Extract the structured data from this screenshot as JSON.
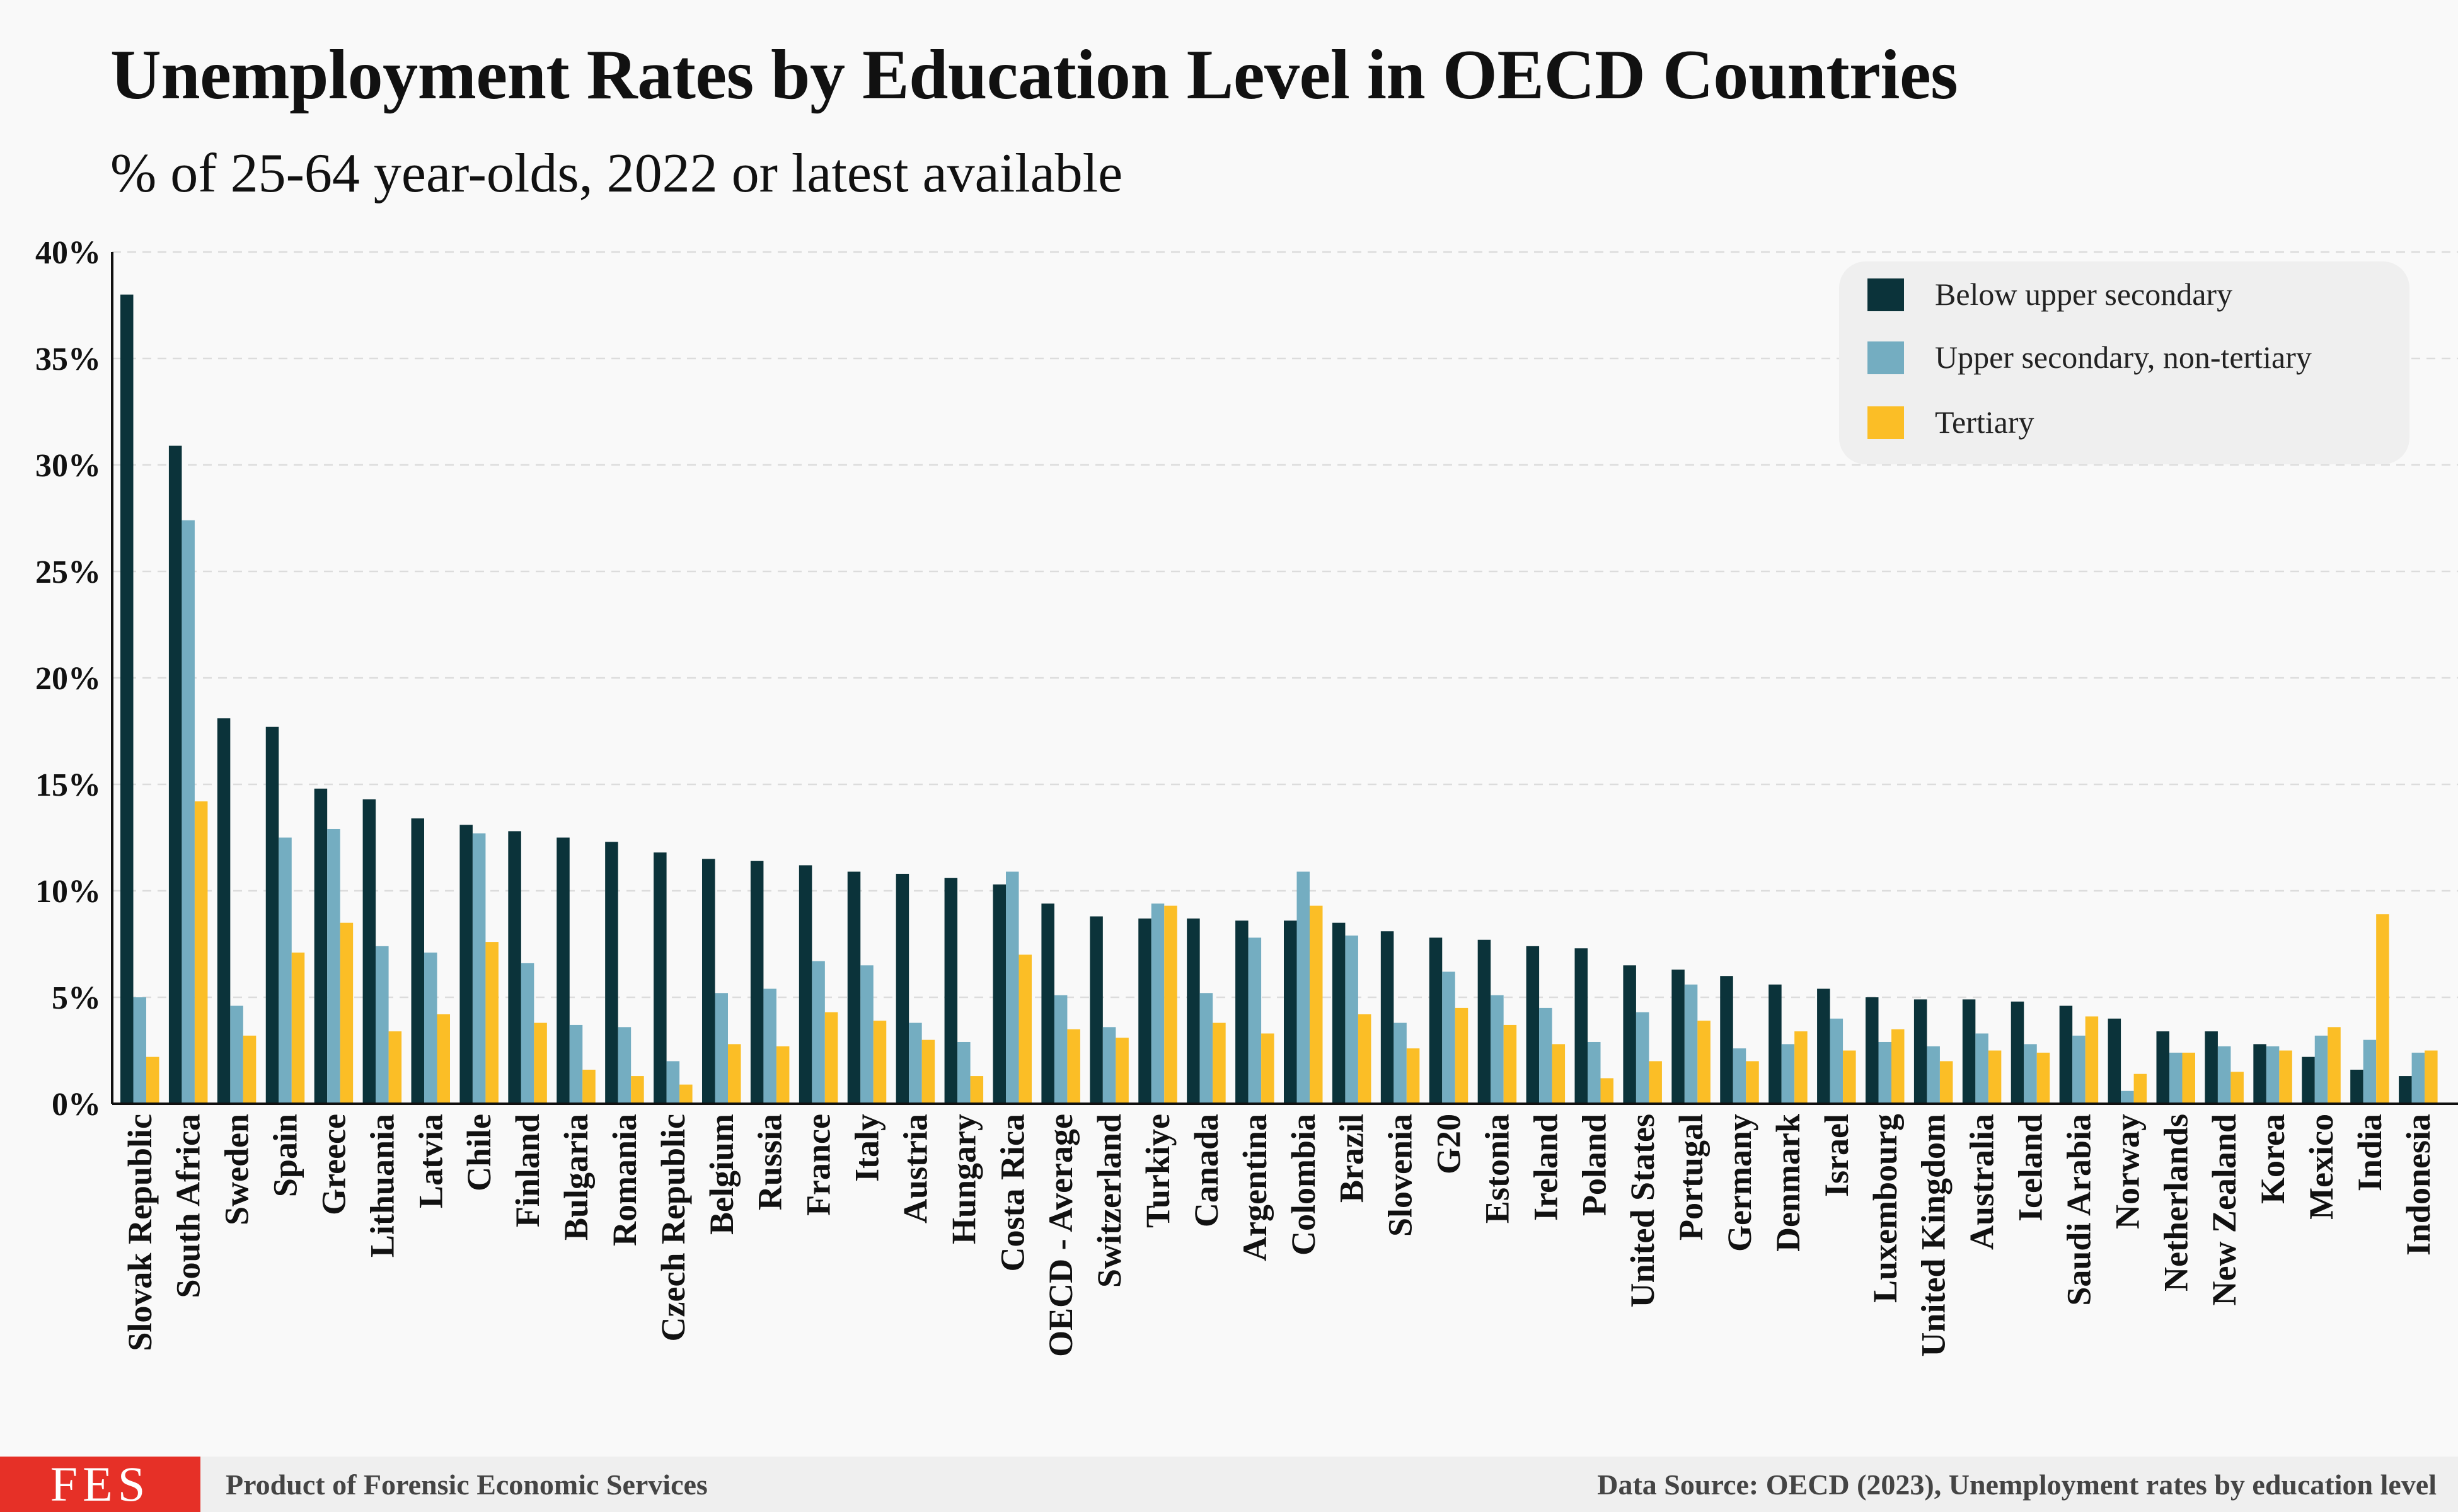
{
  "header": {
    "title": "Unemployment Rates by Education Level in OECD Countries",
    "subtitle": "% of 25-64 year-olds, 2022 or latest available"
  },
  "footer": {
    "logo_text": "FES",
    "left": "Product of  Forensic Economic Services",
    "right": "Data Source: OECD (2023), Unemployment rates by education level"
  },
  "colors": {
    "below_upper_secondary": "#0b333a",
    "upper_secondary": "#74adc1",
    "tertiary": "#fbbe26",
    "legend_bg": "#efefef",
    "logo_bg": "#e63027"
  },
  "chart_data": {
    "type": "bar",
    "title": "Unemployment Rates by Education Level in OECD Countries",
    "subtitle": "% of 25-64 year-olds, 2022 or latest available",
    "xlabel": "",
    "ylabel": "",
    "ylim": [
      0,
      40
    ],
    "yticks": [
      "0%",
      "5%",
      "10%",
      "15%",
      "20%",
      "25%",
      "30%",
      "35%",
      "40%"
    ],
    "grid": "horizontal dashed",
    "legend_position": "top-right",
    "categories": [
      "Slovak Republic",
      "South Africa",
      "Sweden",
      "Spain",
      "Greece",
      "Lithuania",
      "Latvia",
      "Chile",
      "Finland",
      "Bulgaria",
      "Romania",
      "Czech Republic",
      "Belgium",
      "Russia",
      "France",
      "Italy",
      "Austria",
      "Hungary",
      "Costa Rica",
      "OECD - Average",
      "Switzerland",
      "Turkiye",
      "Canada",
      "Argentina",
      "Colombia",
      "Brazil",
      "Slovenia",
      "G20",
      "Estonia",
      "Ireland",
      "Poland",
      "United States",
      "Portugal",
      "Germany",
      "Denmark",
      "Israel",
      "Luxembourg",
      "United Kingdom",
      "Australia",
      "Iceland",
      "Saudi Arabia",
      "Norway",
      "Netherlands",
      "New Zealand",
      "Korea",
      "Mexico",
      "India",
      "Indonesia"
    ],
    "series": [
      {
        "name": "Below upper secondary",
        "values": [
          38.0,
          30.9,
          18.1,
          17.7,
          14.8,
          14.3,
          13.4,
          13.1,
          12.8,
          12.5,
          12.3,
          11.8,
          11.5,
          11.4,
          11.2,
          10.9,
          10.8,
          10.6,
          10.3,
          9.4,
          8.8,
          8.7,
          8.7,
          8.6,
          8.6,
          8.5,
          8.1,
          7.8,
          7.7,
          7.4,
          7.3,
          6.5,
          6.3,
          6.0,
          5.6,
          5.4,
          5.0,
          4.9,
          4.9,
          4.8,
          4.6,
          4.0,
          3.4,
          3.4,
          2.8,
          2.2,
          1.6,
          1.3
        ]
      },
      {
        "name": "Upper secondary, non-tertiary",
        "values": [
          5.0,
          27.4,
          4.6,
          12.5,
          12.9,
          7.4,
          7.1,
          12.7,
          6.6,
          3.7,
          3.6,
          2.0,
          5.2,
          5.4,
          6.7,
          6.5,
          3.8,
          2.9,
          10.9,
          5.1,
          3.6,
          9.4,
          5.2,
          7.8,
          10.9,
          7.9,
          3.8,
          6.2,
          5.1,
          4.5,
          2.9,
          4.3,
          5.6,
          2.6,
          2.8,
          4.0,
          2.9,
          2.7,
          3.3,
          2.8,
          3.2,
          0.6,
          2.4,
          2.7,
          2.7,
          3.2,
          3.0,
          2.4
        ]
      },
      {
        "name": "Tertiary",
        "values": [
          2.2,
          14.2,
          3.2,
          7.1,
          8.5,
          3.4,
          4.2,
          7.6,
          3.8,
          1.6,
          1.3,
          0.9,
          2.8,
          2.7,
          4.3,
          3.9,
          3.0,
          1.3,
          7.0,
          3.5,
          3.1,
          9.3,
          3.8,
          3.3,
          9.3,
          4.2,
          2.6,
          4.5,
          3.7,
          2.8,
          1.2,
          2.0,
          3.9,
          2.0,
          3.4,
          2.5,
          3.5,
          2.0,
          2.5,
          2.4,
          4.1,
          1.4,
          2.4,
          1.5,
          2.5,
          3.6,
          8.9,
          2.5
        ]
      }
    ]
  }
}
